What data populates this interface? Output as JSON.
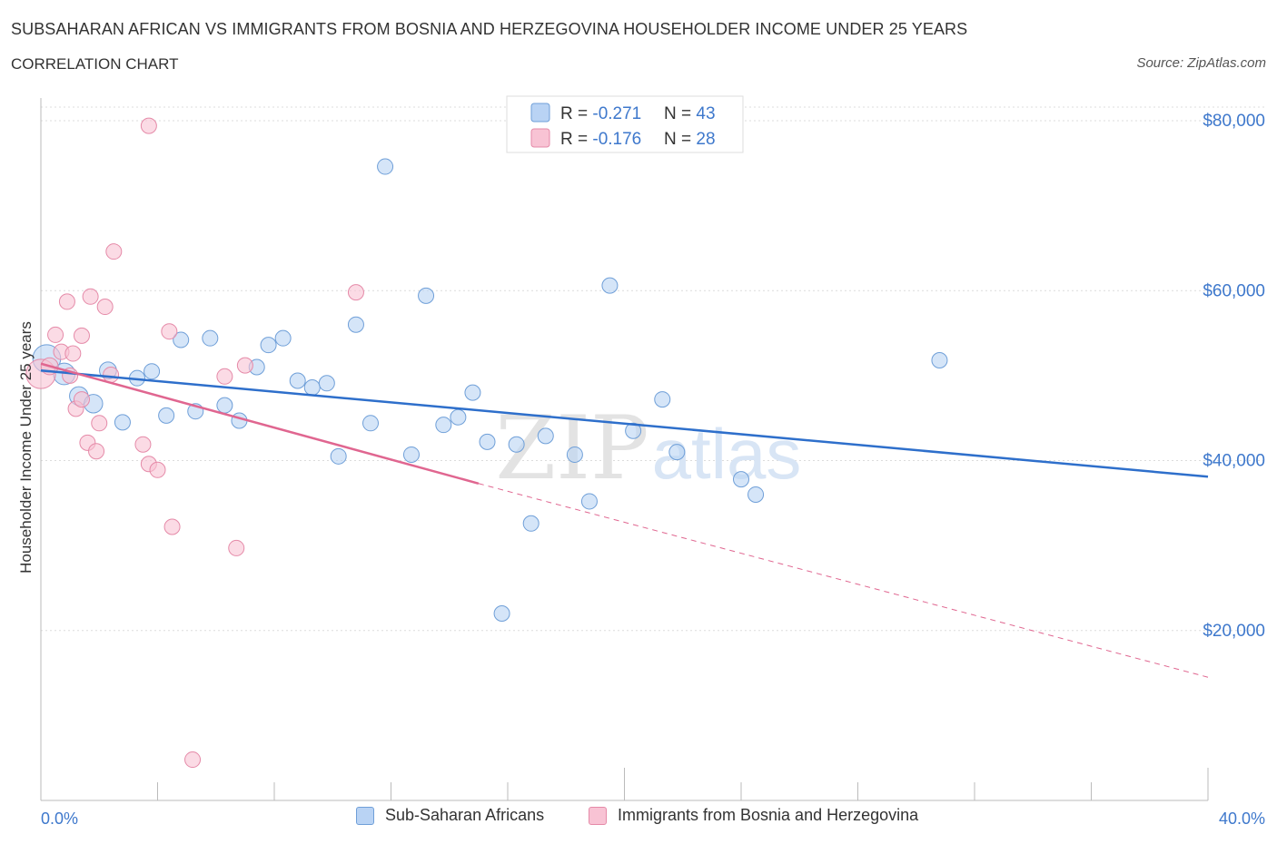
{
  "title": "SUBSAHARAN AFRICAN VS IMMIGRANTS FROM BOSNIA AND HERZEGOVINA HOUSEHOLDER INCOME UNDER 25 YEARS",
  "subtitle": "CORRELATION CHART",
  "source": "Source: ZipAtlas.com",
  "colors": {
    "blue_fill": "#b9d3f4",
    "blue_stroke": "#6f9fd8",
    "blue_line": "#2e6fcb",
    "pink_fill": "#f8c3d4",
    "pink_stroke": "#e58aa8",
    "pink_line": "#e06690",
    "axis_label": "#3e78cc"
  },
  "legend": {
    "rows": [
      {
        "r_label": "R = ",
        "r_value": "-0.271",
        "n_label": "N = ",
        "n_value": "43"
      },
      {
        "r_label": "R = ",
        "r_value": "-0.176",
        "n_label": "N = ",
        "n_value": "28"
      }
    ]
  },
  "bottom_legend": {
    "blue": "Sub-Saharan Africans",
    "pink": "Immigrants from Bosnia and Herzegovina"
  },
  "watermark": {
    "zip": "ZIP",
    "atlas": "atlas"
  },
  "chart_data": {
    "type": "scatter",
    "xlabel": "",
    "ylabel": "Householder Income Under 25 years",
    "xlim": [
      0,
      40
    ],
    "ylim": [
      0,
      80000
    ],
    "x_tick_labels": [
      "0.0%",
      "40.0%"
    ],
    "y_ticks": [
      {
        "value": 80000,
        "label": "$80,000"
      },
      {
        "value": 60000,
        "label": "$60,000"
      },
      {
        "value": 40000,
        "label": "$40,000"
      },
      {
        "value": 20000,
        "label": "$20,000"
      }
    ],
    "grid": true,
    "series": [
      {
        "name": "Sub-Saharan Africans",
        "color": "blue",
        "trend": {
          "x0": 0,
          "y0": 50600,
          "x1": 40,
          "y1": 38100,
          "dashed_extension": false
        },
        "points": [
          {
            "x": 0.2,
            "y": 52000,
            "s": 1.8
          },
          {
            "x": 0.8,
            "y": 50200,
            "s": 1.4
          },
          {
            "x": 1.3,
            "y": 47600,
            "s": 1.2
          },
          {
            "x": 1.8,
            "y": 46700,
            "s": 1.2
          },
          {
            "x": 2.3,
            "y": 50600,
            "s": 1.1
          },
          {
            "x": 2.8,
            "y": 44500,
            "s": 1.0
          },
          {
            "x": 3.3,
            "y": 49700,
            "s": 1.0
          },
          {
            "x": 3.8,
            "y": 50500,
            "s": 1.0
          },
          {
            "x": 4.3,
            "y": 45300,
            "s": 1.0
          },
          {
            "x": 4.8,
            "y": 54200,
            "s": 1.0
          },
          {
            "x": 5.3,
            "y": 45800,
            "s": 1.0
          },
          {
            "x": 5.8,
            "y": 54400,
            "s": 1.0
          },
          {
            "x": 6.3,
            "y": 46500,
            "s": 1.0
          },
          {
            "x": 6.8,
            "y": 44700,
            "s": 1.0
          },
          {
            "x": 7.4,
            "y": 51000,
            "s": 1.0
          },
          {
            "x": 7.8,
            "y": 53600,
            "s": 1.0
          },
          {
            "x": 8.3,
            "y": 54400,
            "s": 1.0
          },
          {
            "x": 8.8,
            "y": 49400,
            "s": 1.0
          },
          {
            "x": 9.3,
            "y": 48600,
            "s": 1.0
          },
          {
            "x": 9.8,
            "y": 49100,
            "s": 1.0
          },
          {
            "x": 10.2,
            "y": 40500,
            "s": 1.0
          },
          {
            "x": 10.8,
            "y": 56000,
            "s": 1.0
          },
          {
            "x": 11.3,
            "y": 44400,
            "s": 1.0
          },
          {
            "x": 11.8,
            "y": 74600,
            "s": 1.0
          },
          {
            "x": 12.7,
            "y": 40700,
            "s": 1.0
          },
          {
            "x": 13.2,
            "y": 59400,
            "s": 1.0
          },
          {
            "x": 13.8,
            "y": 44200,
            "s": 1.0
          },
          {
            "x": 14.3,
            "y": 45100,
            "s": 1.0
          },
          {
            "x": 14.8,
            "y": 48000,
            "s": 1.0
          },
          {
            "x": 15.3,
            "y": 42200,
            "s": 1.0
          },
          {
            "x": 15.8,
            "y": 22000,
            "s": 1.0
          },
          {
            "x": 16.3,
            "y": 41900,
            "s": 1.0
          },
          {
            "x": 16.8,
            "y": 32600,
            "s": 1.0
          },
          {
            "x": 17.3,
            "y": 42900,
            "s": 1.0
          },
          {
            "x": 18.3,
            "y": 40700,
            "s": 1.0
          },
          {
            "x": 18.8,
            "y": 35200,
            "s": 1.0
          },
          {
            "x": 19.5,
            "y": 60600,
            "s": 1.0
          },
          {
            "x": 20.3,
            "y": 43500,
            "s": 1.0
          },
          {
            "x": 21.3,
            "y": 47200,
            "s": 1.0
          },
          {
            "x": 21.8,
            "y": 41000,
            "s": 1.0
          },
          {
            "x": 24.0,
            "y": 37800,
            "s": 1.0
          },
          {
            "x": 24.5,
            "y": 36000,
            "s": 1.0
          },
          {
            "x": 30.8,
            "y": 51800,
            "s": 1.0
          }
        ]
      },
      {
        "name": "Immigrants from Bosnia and Herzegovina",
        "color": "pink",
        "trend": {
          "x0": 0,
          "y0": 51400,
          "x1": 15,
          "y1": 37300,
          "dashed_to_x": 40,
          "dashed_to_y": 14500
        },
        "points": [
          {
            "x": 0.0,
            "y": 50200,
            "s": 1.9
          },
          {
            "x": 0.3,
            "y": 51100,
            "s": 1.1
          },
          {
            "x": 0.5,
            "y": 54800,
            "s": 1.0
          },
          {
            "x": 0.7,
            "y": 52800,
            "s": 1.0
          },
          {
            "x": 0.9,
            "y": 58700,
            "s": 1.0
          },
          {
            "x": 1.0,
            "y": 50000,
            "s": 1.0
          },
          {
            "x": 1.1,
            "y": 52600,
            "s": 1.0
          },
          {
            "x": 1.2,
            "y": 46100,
            "s": 1.0
          },
          {
            "x": 1.4,
            "y": 47200,
            "s": 1.0
          },
          {
            "x": 1.4,
            "y": 54700,
            "s": 1.0
          },
          {
            "x": 1.6,
            "y": 42100,
            "s": 1.0
          },
          {
            "x": 1.7,
            "y": 59300,
            "s": 1.0
          },
          {
            "x": 1.9,
            "y": 41100,
            "s": 1.0
          },
          {
            "x": 2.0,
            "y": 44400,
            "s": 1.0
          },
          {
            "x": 2.2,
            "y": 58100,
            "s": 1.0
          },
          {
            "x": 2.4,
            "y": 50100,
            "s": 1.0
          },
          {
            "x": 2.5,
            "y": 64600,
            "s": 1.0
          },
          {
            "x": 3.5,
            "y": 41900,
            "s": 1.0
          },
          {
            "x": 3.7,
            "y": 79400,
            "s": 1.0
          },
          {
            "x": 3.7,
            "y": 39600,
            "s": 1.0
          },
          {
            "x": 4.0,
            "y": 38900,
            "s": 1.0
          },
          {
            "x": 4.4,
            "y": 55200,
            "s": 1.0
          },
          {
            "x": 4.5,
            "y": 32200,
            "s": 1.0
          },
          {
            "x": 5.2,
            "y": 4800,
            "s": 1.0
          },
          {
            "x": 6.3,
            "y": 49900,
            "s": 1.0
          },
          {
            "x": 6.7,
            "y": 29700,
            "s": 1.0
          },
          {
            "x": 7.0,
            "y": 51200,
            "s": 1.0
          },
          {
            "x": 10.8,
            "y": 59800,
            "s": 1.0
          }
        ]
      }
    ]
  }
}
